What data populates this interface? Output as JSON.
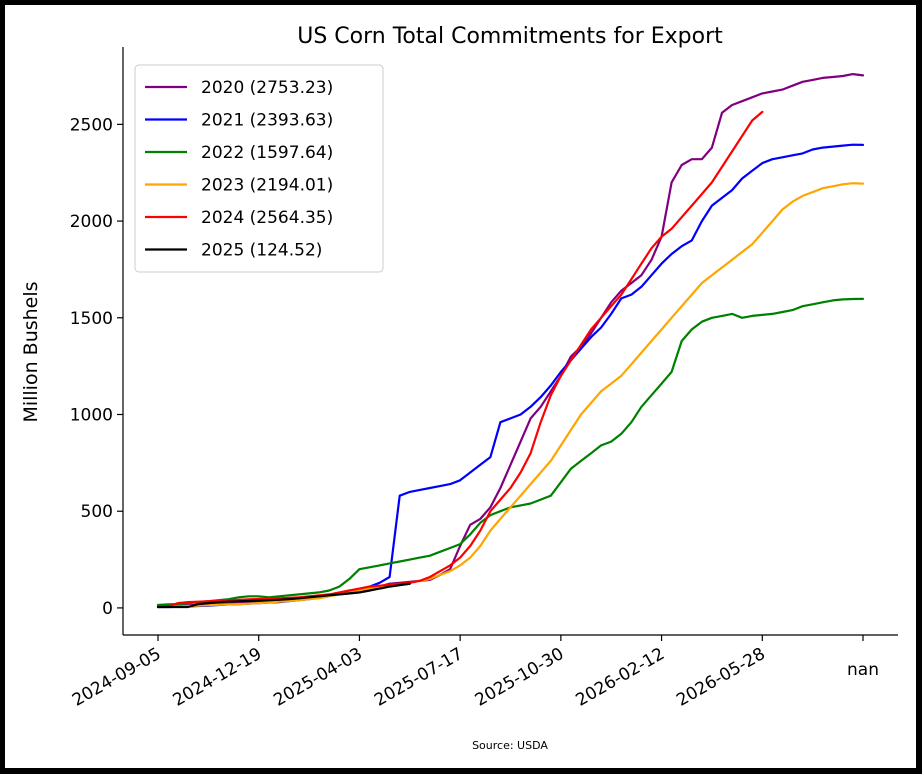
{
  "chart_data": {
    "type": "line",
    "title": "US Corn Total Commitments for Export",
    "ylabel": "Million Bushels",
    "xlabel": "",
    "source": "Source: USDA",
    "x_tick_labels": [
      "2024-09-05",
      "2024-12-19",
      "2025-04-03",
      "2025-07-17",
      "2025-10-30",
      "2026-02-12",
      "2026-05-28",
      "nan"
    ],
    "y_ticks": [
      0,
      500,
      1000,
      1500,
      2000,
      2500
    ],
    "ylim": [
      -140,
      2900
    ],
    "legend_position": "top-left",
    "grid": false,
    "series": [
      {
        "name": "2020 (2753.23)",
        "color": "#800080",
        "x": [
          0,
          1,
          2,
          3,
          4,
          5,
          6,
          7,
          8,
          9,
          10,
          11,
          12,
          13,
          14,
          15,
          16,
          17,
          18,
          19,
          20,
          21,
          22,
          23,
          24,
          25,
          26,
          27,
          28,
          29,
          30,
          31,
          32,
          33,
          34,
          35,
          36,
          37,
          38,
          39,
          40,
          41,
          42,
          43,
          44,
          45,
          46,
          47,
          48,
          49,
          50,
          51,
          52,
          53,
          54,
          55,
          56,
          57,
          58,
          59,
          60,
          61,
          62,
          63,
          64,
          65,
          66,
          67,
          68,
          69,
          70
        ],
        "values": [
          10,
          10,
          12,
          14,
          16,
          18,
          20,
          22,
          24,
          28,
          30,
          35,
          40,
          45,
          50,
          55,
          60,
          65,
          70,
          75,
          80,
          90,
          110,
          125,
          130,
          135,
          140,
          145,
          170,
          200,
          320,
          430,
          460,
          520,
          620,
          740,
          860,
          980,
          1040,
          1120,
          1200,
          1300,
          1350,
          1420,
          1500,
          1580,
          1640,
          1680,
          1720,
          1800,
          1920,
          2200,
          2290,
          2320,
          2320,
          2380,
          2560,
          2600,
          2620,
          2640,
          2660,
          2670,
          2680,
          2700,
          2720,
          2730,
          2740,
          2745,
          2750,
          2760,
          2753.23
        ]
      },
      {
        "name": "2021 (2393.63)",
        "color": "#0000ff",
        "x": [
          0,
          1,
          2,
          3,
          4,
          5,
          6,
          7,
          8,
          9,
          10,
          11,
          12,
          13,
          14,
          15,
          16,
          17,
          18,
          19,
          20,
          21,
          22,
          23,
          24,
          25,
          26,
          27,
          28,
          29,
          30,
          31,
          32,
          33,
          34,
          35,
          36,
          37,
          38,
          39,
          40,
          41,
          42,
          43,
          44,
          45,
          46,
          47,
          48,
          49,
          50,
          51,
          52,
          53,
          54,
          55,
          56,
          57,
          58,
          59,
          60,
          61,
          62,
          63,
          64,
          65,
          66,
          67,
          68,
          69,
          70
        ],
        "values": [
          5,
          5,
          6,
          8,
          10,
          12,
          15,
          18,
          20,
          22,
          25,
          28,
          30,
          35,
          40,
          45,
          55,
          65,
          75,
          85,
          95,
          110,
          130,
          160,
          580,
          600,
          610,
          620,
          630,
          640,
          660,
          700,
          740,
          780,
          960,
          980,
          1000,
          1040,
          1090,
          1150,
          1220,
          1280,
          1340,
          1400,
          1450,
          1520,
          1600,
          1620,
          1660,
          1720,
          1780,
          1830,
          1870,
          1900,
          2000,
          2080,
          2120,
          2160,
          2220,
          2260,
          2300,
          2320,
          2330,
          2340,
          2350,
          2370,
          2380,
          2385,
          2390,
          2395,
          2393.63
        ]
      },
      {
        "name": "2022 (1597.64)",
        "color": "#008000",
        "x": [
          0,
          1,
          2,
          3,
          4,
          5,
          6,
          7,
          8,
          9,
          10,
          11,
          12,
          13,
          14,
          15,
          16,
          17,
          18,
          19,
          20,
          21,
          22,
          23,
          24,
          25,
          26,
          27,
          28,
          29,
          30,
          31,
          32,
          33,
          34,
          35,
          36,
          37,
          38,
          39,
          40,
          41,
          42,
          43,
          44,
          45,
          46,
          47,
          48,
          49,
          50,
          51,
          52,
          53,
          54,
          55,
          56,
          57,
          58,
          59,
          60,
          61,
          62,
          63,
          64,
          65,
          66,
          67,
          68,
          69,
          70
        ],
        "values": [
          15,
          18,
          20,
          25,
          30,
          35,
          40,
          45,
          55,
          60,
          60,
          55,
          60,
          65,
          70,
          75,
          80,
          90,
          110,
          150,
          200,
          210,
          220,
          230,
          240,
          250,
          260,
          270,
          290,
          310,
          330,
          380,
          440,
          480,
          500,
          520,
          530,
          540,
          560,
          580,
          650,
          720,
          760,
          800,
          840,
          860,
          900,
          960,
          1040,
          1100,
          1160,
          1220,
          1380,
          1440,
          1480,
          1500,
          1510,
          1520,
          1500,
          1510,
          1515,
          1520,
          1530,
          1540,
          1560,
          1570,
          1580,
          1590,
          1595,
          1597,
          1597.64
        ]
      },
      {
        "name": "2023 (2194.01)",
        "color": "#ffa500",
        "x": [
          0,
          1,
          2,
          3,
          4,
          5,
          6,
          7,
          8,
          9,
          10,
          11,
          12,
          13,
          14,
          15,
          16,
          17,
          18,
          19,
          20,
          21,
          22,
          23,
          24,
          25,
          26,
          27,
          28,
          29,
          30,
          31,
          32,
          33,
          34,
          35,
          36,
          37,
          38,
          39,
          40,
          41,
          42,
          43,
          44,
          45,
          46,
          47,
          48,
          49,
          50,
          51,
          52,
          53,
          54,
          55,
          56,
          57,
          58,
          59,
          60,
          61,
          62,
          63,
          64,
          65,
          66,
          67,
          68,
          69,
          70
        ],
        "values": [
          5,
          6,
          8,
          10,
          12,
          14,
          16,
          18,
          20,
          22,
          25,
          28,
          32,
          36,
          40,
          45,
          50,
          60,
          70,
          80,
          90,
          100,
          110,
          115,
          120,
          130,
          140,
          150,
          170,
          190,
          220,
          260,
          320,
          400,
          460,
          520,
          580,
          640,
          700,
          760,
          840,
          920,
          1000,
          1060,
          1120,
          1160,
          1200,
          1260,
          1320,
          1380,
          1440,
          1500,
          1560,
          1620,
          1680,
          1720,
          1760,
          1800,
          1840,
          1880,
          1940,
          2000,
          2060,
          2100,
          2130,
          2150,
          2170,
          2180,
          2190,
          2196,
          2194.01
        ]
      },
      {
        "name": "2024 (2564.35)",
        "color": "#ff0000",
        "x": [
          0,
          1,
          2,
          3,
          4,
          5,
          6,
          7,
          8,
          9,
          10,
          11,
          12,
          13,
          14,
          15,
          16,
          17,
          18,
          19,
          20,
          21,
          22,
          23,
          24,
          25,
          26,
          27,
          28,
          29,
          30,
          31,
          32,
          33,
          34,
          35,
          36,
          37,
          38,
          39,
          40,
          41,
          42,
          43,
          44,
          45,
          46,
          47,
          48,
          49,
          50,
          51,
          52,
          53,
          54,
          55,
          56,
          57,
          58,
          59,
          60
        ],
        "values": [
          5,
          8,
          25,
          30,
          32,
          35,
          38,
          40,
          42,
          44,
          46,
          48,
          50,
          52,
          55,
          60,
          65,
          70,
          80,
          90,
          100,
          110,
          115,
          120,
          125,
          130,
          140,
          160,
          190,
          220,
          260,
          320,
          400,
          500,
          560,
          620,
          700,
          800,
          960,
          1100,
          1200,
          1280,
          1360,
          1440,
          1500,
          1560,
          1620,
          1700,
          1780,
          1860,
          1920,
          1960,
          2020,
          2080,
          2140,
          2200,
          2280,
          2360,
          2440,
          2520,
          2564.35
        ]
      },
      {
        "name": "2025 (124.52)",
        "color": "#000000",
        "x": [
          0,
          1,
          2,
          3,
          4,
          5,
          6,
          7,
          8,
          9,
          10,
          11,
          12,
          13,
          14,
          15,
          16,
          17,
          18,
          19,
          20,
          21,
          22,
          23,
          24,
          25
        ],
        "values": [
          5,
          5,
          5,
          5,
          20,
          25,
          30,
          32,
          34,
          36,
          38,
          40,
          42,
          45,
          50,
          55,
          60,
          65,
          70,
          75,
          80,
          90,
          100,
          110,
          118,
          124.52
        ]
      }
    ]
  }
}
